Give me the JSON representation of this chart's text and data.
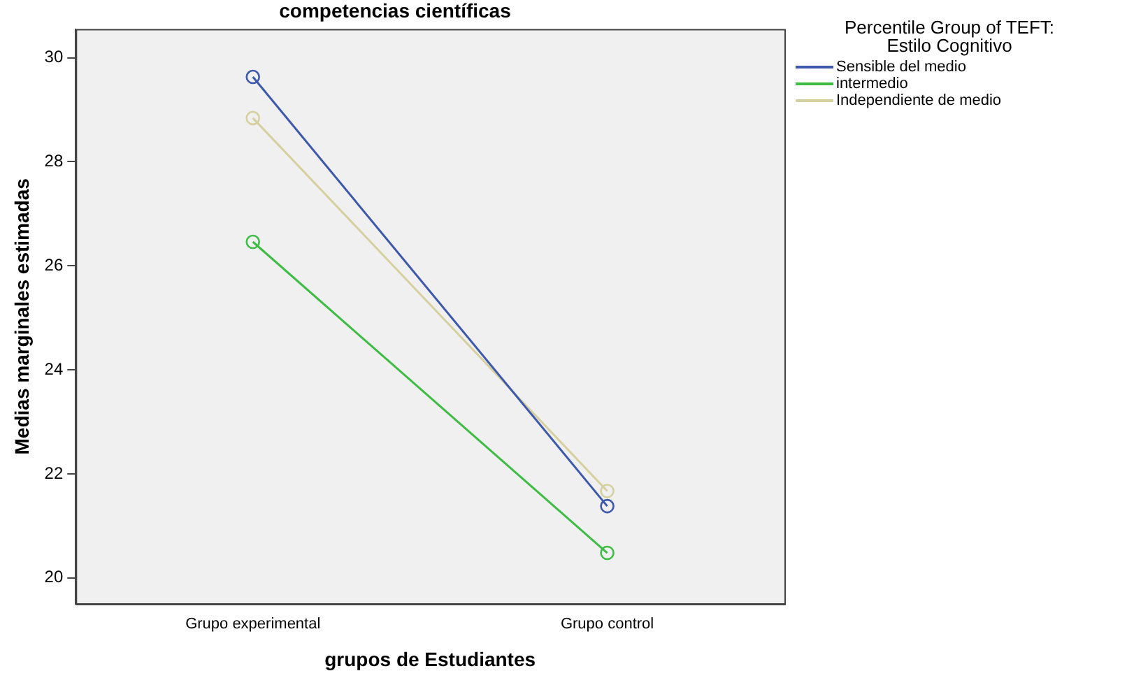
{
  "chart_data": {
    "type": "line",
    "title": "competencias científicas",
    "xlabel": "grupos de Estudiantes",
    "ylabel": "Medias marginales estimadas",
    "legend_title": "Percentile Group of TEFT: Estilo Cognitivo",
    "categories": [
      "Grupo experimental",
      "Grupo control"
    ],
    "series": [
      {
        "name": "Sensible del medio",
        "color": "#3e58ac",
        "values": [
          29.63,
          21.38
        ]
      },
      {
        "name": "intermedio",
        "color": "#3ebc44",
        "values": [
          26.46,
          20.48
        ]
      },
      {
        "name": "Independiente de medio",
        "color": "#d6d0a0",
        "values": [
          28.84,
          21.67
        ]
      }
    ],
    "ylim": [
      19.5,
      30.55
    ],
    "yticks": [
      20,
      22,
      24,
      26,
      28,
      30
    ],
    "grid": false,
    "legend": "right",
    "marker": "circle",
    "line_style": "solid"
  }
}
